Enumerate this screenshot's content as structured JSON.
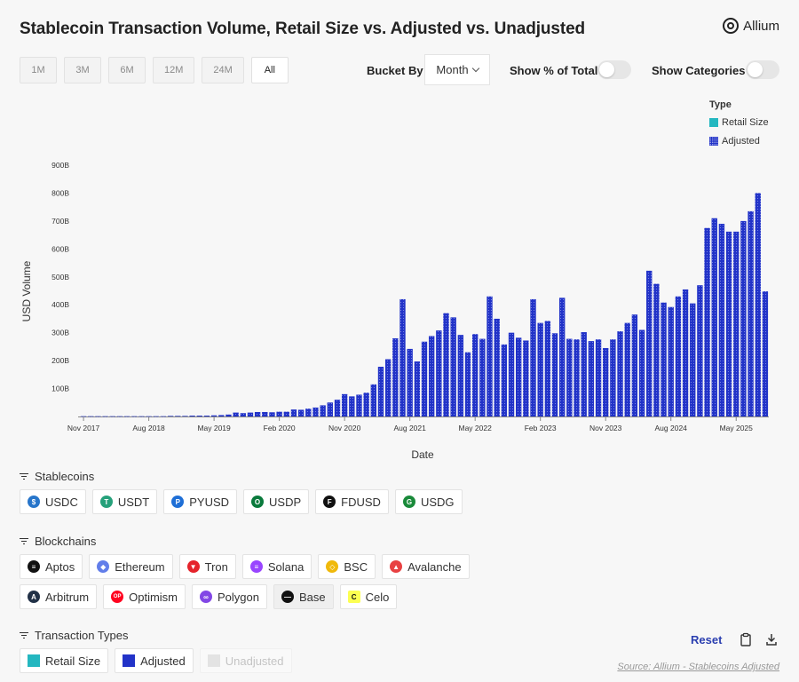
{
  "title": "Stablecoin Transaction Volume, Retail Size vs. Adjusted vs. Unadjusted",
  "logo": {
    "text": "Allium",
    "icon": "allium-logo-icon"
  },
  "ranges": [
    {
      "label": "1M",
      "active": false
    },
    {
      "label": "3M",
      "active": false
    },
    {
      "label": "6M",
      "active": false
    },
    {
      "label": "12M",
      "active": false
    },
    {
      "label": "24M",
      "active": false
    },
    {
      "label": "All",
      "active": true
    }
  ],
  "controls": {
    "bucket_label": "Bucket By",
    "bucket_value": "Month",
    "show_percent_label": "Show % of Total",
    "show_categories_label": "Show Categories"
  },
  "legend": {
    "title": "Type",
    "items": [
      {
        "label": "Retail Size",
        "color": "#24b7c0"
      },
      {
        "label": "Adjusted",
        "color": "#2233c8"
      }
    ]
  },
  "chart_data": {
    "type": "bar",
    "xlabel": "Date",
    "ylabel": "USD Volume",
    "ylim": [
      0,
      900
    ],
    "y_ticks": [
      "100B",
      "200B",
      "300B",
      "400B",
      "500B",
      "600B",
      "700B",
      "800B",
      "900B"
    ],
    "x_ticks": [
      "Nov 2017",
      "Aug 2018",
      "May 2019",
      "Feb 2020",
      "Nov 2020",
      "Aug 2021",
      "May 2022",
      "Feb 2023",
      "Nov 2023",
      "Aug 2024",
      "May 2025"
    ],
    "start_month": "Nov 2017",
    "legend_position": "top-right",
    "series": [
      {
        "name": "Adjusted",
        "color": "#2233c8",
        "values": [
          1,
          1,
          1,
          1,
          1,
          1,
          1,
          1,
          1,
          1,
          1,
          1,
          2,
          2,
          2,
          3,
          3,
          3,
          4,
          5,
          7,
          14,
          12,
          14,
          16,
          16,
          15,
          17,
          17,
          25,
          24,
          28,
          32,
          40,
          50,
          60,
          80,
          72,
          78,
          85,
          115,
          178,
          205,
          280,
          420,
          242,
          197,
          268,
          288,
          308,
          370,
          355,
          292,
          230,
          295,
          278,
          430,
          350,
          258,
          300,
          282,
          272,
          420,
          335,
          342,
          298,
          425,
          278,
          276,
          302,
          270,
          276,
          245,
          276,
          305,
          335,
          365,
          310,
          522,
          475,
          408,
          392,
          430,
          455,
          405,
          470,
          675,
          710,
          690,
          662,
          662,
          700,
          735,
          800,
          448
        ]
      },
      {
        "name": "Retail Size",
        "color": "#24b7c0",
        "values": [
          0,
          0,
          0,
          0,
          0,
          0,
          0,
          0,
          0,
          0,
          0,
          0,
          0,
          0,
          0,
          0,
          0,
          0,
          0,
          0,
          0,
          0,
          0,
          0,
          0,
          0,
          0,
          0,
          0,
          0,
          0,
          0,
          0,
          0,
          0,
          0,
          0,
          0,
          0,
          0,
          0,
          0,
          0,
          0,
          0,
          0,
          0,
          0,
          0,
          0,
          0,
          0,
          0,
          0,
          0,
          0,
          0,
          0,
          0,
          0,
          0,
          0,
          0,
          0,
          0,
          0,
          0,
          0,
          0,
          0,
          0,
          0,
          0,
          0,
          0,
          0,
          0,
          0,
          0,
          0,
          0,
          0,
          0,
          0,
          0,
          0,
          0,
          0,
          0,
          0,
          0,
          0,
          0,
          0,
          0
        ]
      }
    ]
  },
  "stablecoins": {
    "title": "Stablecoins",
    "items": [
      {
        "label": "USDC",
        "icon": "usdc-icon",
        "color": "#2775ca",
        "glyph": "$"
      },
      {
        "label": "USDT",
        "icon": "usdt-icon",
        "color": "#26a17b",
        "glyph": "T"
      },
      {
        "label": "PYUSD",
        "icon": "pyusd-icon",
        "color": "#1f6fd6",
        "glyph": "P"
      },
      {
        "label": "USDP",
        "icon": "usdp-icon",
        "color": "#0a7a3c",
        "glyph": "O"
      },
      {
        "label": "FDUSD",
        "icon": "fdusd-icon",
        "color": "#111111",
        "glyph": "F"
      },
      {
        "label": "USDG",
        "icon": "usdg-icon",
        "color": "#1a8a3a",
        "glyph": "G"
      }
    ]
  },
  "blockchains": {
    "title": "Blockchains",
    "row1": [
      {
        "label": "Aptos",
        "icon": "aptos-icon",
        "color": "#111111",
        "glyph": "≡"
      },
      {
        "label": "Ethereum",
        "icon": "ethereum-icon",
        "color": "#627eea",
        "glyph": "◆"
      },
      {
        "label": "Tron",
        "icon": "tron-icon",
        "color": "#e5232b",
        "glyph": "▼"
      },
      {
        "label": "Solana",
        "icon": "solana-icon",
        "color": "#9945ff",
        "glyph": "≡"
      },
      {
        "label": "BSC",
        "icon": "bsc-icon",
        "color": "#f0b90b",
        "glyph": "◇"
      },
      {
        "label": "Avalanche",
        "icon": "avalanche-icon",
        "color": "#e84142",
        "glyph": "▲"
      }
    ],
    "row2": [
      {
        "label": "Arbitrum",
        "icon": "arbitrum-icon",
        "color": "#213147",
        "glyph": "A"
      },
      {
        "label": "Optimism",
        "icon": "optimism-icon",
        "color": "#ff0420",
        "glyph": "OP"
      },
      {
        "label": "Polygon",
        "icon": "polygon-icon",
        "color": "#8247e5",
        "glyph": "∞"
      },
      {
        "label": "Base",
        "icon": "base-icon",
        "color": "#111111",
        "glyph": "—"
      },
      {
        "label": "Celo",
        "icon": "celo-icon",
        "color": "#fcff52",
        "glyph": "C"
      }
    ]
  },
  "transaction_types": {
    "title": "Transaction Types",
    "items": [
      {
        "label": "Retail Size",
        "color": "#24b7c0"
      },
      {
        "label": "Adjusted",
        "color": "#2233c8"
      },
      {
        "label": "Unadjusted",
        "color": "#e3e3e3"
      }
    ]
  },
  "footer": {
    "reset_label": "Reset",
    "source": "Source: Allium - Stablecoins Adjusted"
  }
}
